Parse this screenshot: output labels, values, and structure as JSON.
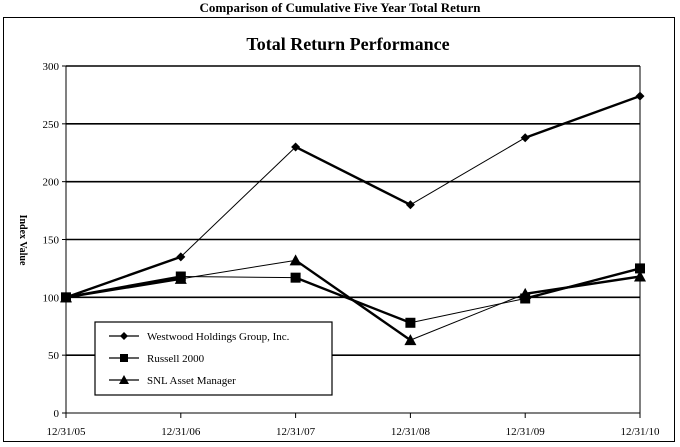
{
  "page": {
    "heading": "Comparison of Cumulative Five Year Total Return"
  },
  "chart_data": {
    "type": "line",
    "title": "Total Return Performance",
    "ylabel": "Index Value",
    "xlabel": "",
    "categories": [
      "12/31/05",
      "12/31/06",
      "12/31/07",
      "12/31/08",
      "12/31/09",
      "12/31/10"
    ],
    "ylim": [
      0,
      300
    ],
    "yticks": [
      0,
      50,
      100,
      150,
      200,
      250,
      300
    ],
    "grid": "horizontal",
    "legend_position": "bottom-left",
    "series": [
      {
        "name": "Westwood Holdings Group, Inc.",
        "marker": "diamond",
        "values": [
          100,
          135,
          230,
          180,
          238,
          274
        ]
      },
      {
        "name": "Russell 2000",
        "marker": "square",
        "values": [
          100,
          118,
          117,
          78,
          99,
          125
        ]
      },
      {
        "name": "SNL Asset Manager",
        "marker": "triangle",
        "values": [
          100,
          116,
          132,
          63,
          103,
          118
        ]
      }
    ]
  }
}
